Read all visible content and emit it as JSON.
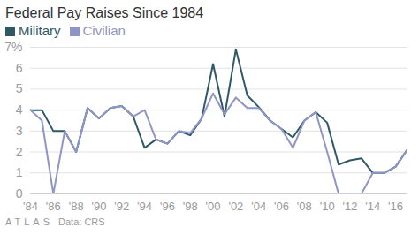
{
  "chart_data": {
    "type": "line",
    "title": "Federal Pay Raises Since 1984",
    "brand": "ATLAS",
    "source": "Data: CRS",
    "legend": "top-left",
    "grid": true,
    "x": [
      1984,
      1985,
      1986,
      1987,
      1988,
      1989,
      1990,
      1991,
      1992,
      1993,
      1994,
      1995,
      1996,
      1997,
      1998,
      1999,
      2000,
      2001,
      2002,
      2003,
      2004,
      2005,
      2006,
      2007,
      2008,
      2009,
      2010,
      2011,
      2012,
      2013,
      2014,
      2015,
      2016,
      2017
    ],
    "series": [
      {
        "name": "Military",
        "color": "#2e5866",
        "values": [
          4.0,
          4.0,
          3.0,
          3.0,
          2.0,
          4.1,
          3.6,
          4.1,
          4.2,
          3.7,
          2.2,
          2.6,
          2.4,
          3.0,
          2.8,
          3.6,
          6.2,
          3.7,
          6.9,
          4.7,
          4.15,
          3.5,
          3.1,
          2.7,
          3.5,
          3.9,
          3.4,
          1.4,
          1.6,
          1.7,
          1.0,
          1.0,
          1.3,
          2.1
        ]
      },
      {
        "name": "Civilian",
        "color": "#8f95c4",
        "values": [
          4.0,
          3.5,
          0.0,
          3.0,
          2.0,
          4.1,
          3.6,
          4.1,
          4.2,
          3.7,
          4.0,
          2.6,
          2.4,
          3.0,
          2.9,
          3.6,
          4.8,
          3.8,
          4.6,
          4.1,
          4.1,
          3.5,
          3.1,
          2.2,
          3.5,
          3.9,
          2.0,
          0.0,
          0.0,
          0.0,
          1.0,
          1.0,
          1.3,
          2.1
        ]
      }
    ],
    "xlim": [
      1984,
      2017
    ],
    "xticks": [
      {
        "value": 1984,
        "label": "'84"
      },
      {
        "value": 1986,
        "label": "'86"
      },
      {
        "value": 1988,
        "label": "'88"
      },
      {
        "value": 1990,
        "label": "'90"
      },
      {
        "value": 1992,
        "label": "'92"
      },
      {
        "value": 1994,
        "label": "'94"
      },
      {
        "value": 1996,
        "label": "'96"
      },
      {
        "value": 1998,
        "label": "'98"
      },
      {
        "value": 2000,
        "label": "'00"
      },
      {
        "value": 2002,
        "label": "'02"
      },
      {
        "value": 2004,
        "label": "'04"
      },
      {
        "value": 2006,
        "label": "'06"
      },
      {
        "value": 2008,
        "label": "'08"
      },
      {
        "value": 2010,
        "label": "'10"
      },
      {
        "value": 2012,
        "label": "'12"
      },
      {
        "value": 2014,
        "label": "'14"
      },
      {
        "value": 2016,
        "label": "'16"
      }
    ],
    "ylim": [
      0,
      7
    ],
    "yticks": [
      0,
      1,
      2,
      3,
      4,
      5,
      {
        "value": 6,
        "label": "6"
      },
      {
        "value": 7,
        "label": "7%"
      }
    ]
  }
}
